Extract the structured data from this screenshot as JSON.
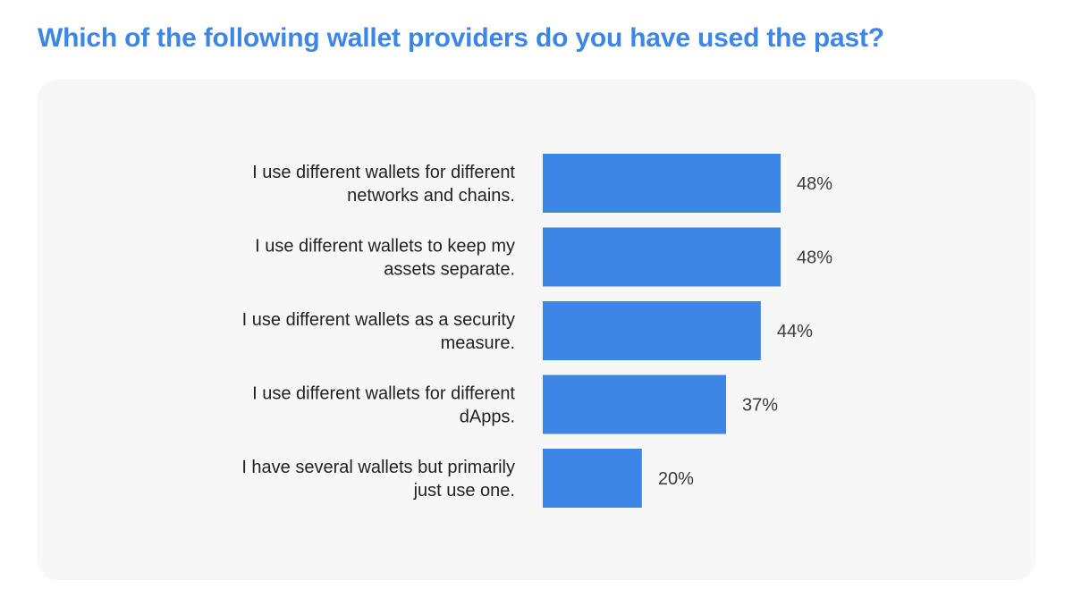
{
  "title": "Which of the following wallet providers do you have used the past?",
  "colors": {
    "title": "#3d86e6",
    "bar": "#3d86e6",
    "panel": "#f7f7f7"
  },
  "chart_data": {
    "type": "bar",
    "orientation": "horizontal",
    "title": "Which of the following wallet providers do you have used the past?",
    "categories": [
      [
        "I use different wallets for different",
        "networks and chains."
      ],
      [
        "I use different wallets to keep my",
        "assets separate."
      ],
      [
        "I use different wallets as a security",
        "measure."
      ],
      [
        "I use different wallets for different",
        "dApps."
      ],
      [
        "I have several wallets but primarily",
        "just use one."
      ]
    ],
    "values": [
      48,
      48,
      44,
      37,
      20
    ],
    "value_labels": [
      "48%",
      "48%",
      "44%",
      "37%",
      "20%"
    ],
    "xlim": [
      0,
      100
    ],
    "unit": "%",
    "grid": false,
    "legend": "none"
  }
}
